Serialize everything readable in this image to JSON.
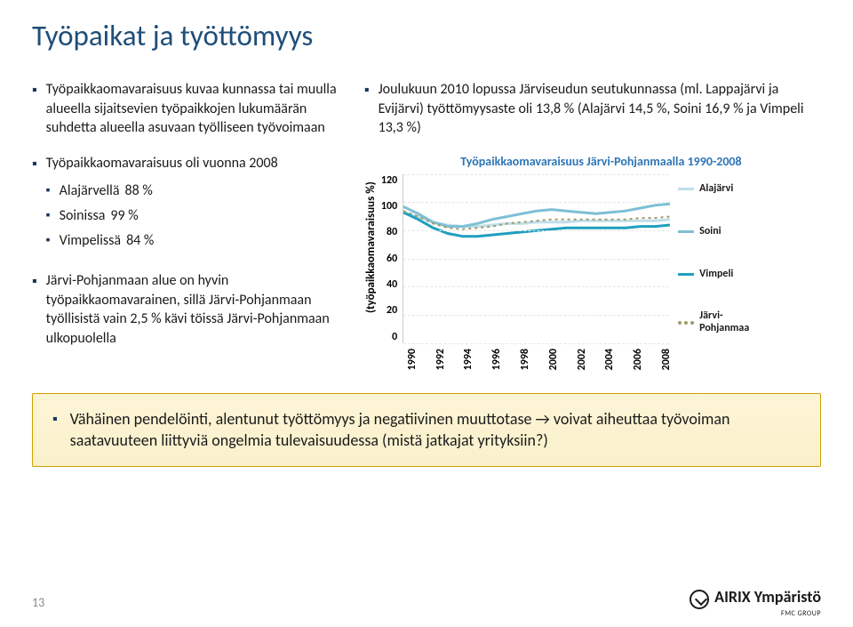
{
  "title": "Työpaikat ja työttömyys",
  "left": {
    "b1": "Työpaikkaomavaraisuus kuvaa kunnassa tai muulla alueella sijaitsevien työpaikkojen lukumäärän suhdetta alueella asuvaan työlliseen työvoimaan",
    "b2_intro": "Työpaikkaomavaraisuus oli vuonna 2008",
    "sub": [
      {
        "name": "Alajärvellä",
        "pct": "88 %"
      },
      {
        "name": "Soinissa",
        "pct": "99 %"
      },
      {
        "name": "Vimpelissä",
        "pct": "84 %"
      }
    ],
    "b3": "Järvi-Pohjanmaan alue on hyvin työpaikkaomavarainen, sillä Järvi-Pohjanmaan työllisistä vain 2,5 % kävi töissä Järvi-Pohjanmaan ulkopuolella"
  },
  "right": {
    "b1": "Joulukuun 2010 lopussa Järviseudun seutukunnassa (ml. Lappajärvi ja Evijärvi) työttömyysaste oli 13,8 % (Alajärvi 14,5 %, Soini 16,9 % ja Vimpeli 13,3 %)"
  },
  "chart": {
    "type": "line",
    "title": "Työpaikkaomavaraisuus Järvi-Pohjanmaalla 1990-2008",
    "ylabel": "(työpaikkaomavaraisuus %)",
    "ylim": [
      0,
      120
    ],
    "yticks": [
      0,
      20,
      40,
      60,
      80,
      100,
      120
    ],
    "xticks": [
      "1990",
      "1992",
      "1994",
      "1996",
      "1998",
      "2000",
      "2002",
      "2004",
      "2006",
      "2008"
    ],
    "x_count": 19,
    "background_color": "#ffffff",
    "grid_color": "#e6e6e6",
    "title_fontsize": 14,
    "label_fontsize": 13,
    "series": {
      "alajarvi": {
        "label": "Alajärvi",
        "color": "#bedfea",
        "width": 3,
        "values": [
          93,
          90,
          86,
          84,
          83,
          83,
          84,
          85,
          85,
          86,
          86,
          86,
          87,
          87,
          87,
          87,
          87,
          87,
          88
        ]
      },
      "soini": {
        "label": "Soini",
        "color": "#7dbfd6",
        "width": 3,
        "values": [
          97,
          92,
          86,
          83,
          83,
          85,
          88,
          90,
          92,
          94,
          95,
          94,
          93,
          92,
          93,
          94,
          96,
          98,
          99
        ]
      },
      "vimpeli": {
        "label": "Vimpeli",
        "color": "#1f9fbf",
        "width": 3,
        "values": [
          93,
          88,
          82,
          78,
          76,
          76,
          77,
          78,
          79,
          80,
          81,
          82,
          82,
          82,
          82,
          82,
          83,
          83,
          84
        ]
      },
      "jarvi": {
        "label": "Järvi-\nPohjanmaa",
        "color": "#a19b6b",
        "width": 2,
        "dash": "3,4",
        "values": [
          94,
          90,
          85,
          82,
          81,
          82,
          83,
          85,
          86,
          87,
          88,
          88,
          88,
          88,
          88,
          88,
          89,
          89,
          90
        ]
      }
    }
  },
  "callout": "Vähäinen pendelöinti, alentunut työttömyys ja  negatiivinen muuttotase → voivat aiheuttaa työvoiman saatavuuteen liittyviä ongelmia tulevaisuudessa (mistä jatkajat yrityksiin?)",
  "footer": {
    "page": "13",
    "logo_text": "AIRIX Ympäristö",
    "logo_sub": "FMC GROUP"
  }
}
